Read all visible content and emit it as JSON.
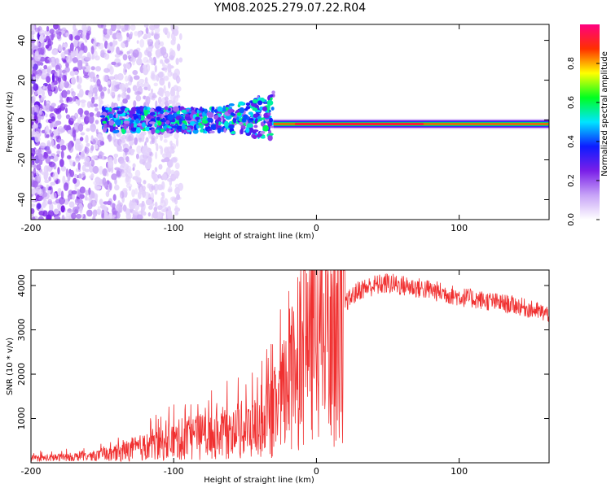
{
  "title": "YM08.2025.279.07.22.R04",
  "chart_data": [
    {
      "type": "heatmap",
      "xlabel": "Height of straight line (km)",
      "ylabel": "Frequency (Hz)",
      "xlim": [
        -200,
        163
      ],
      "ylim": [
        -50,
        48
      ],
      "xticks": [
        -200,
        -100,
        0,
        100
      ],
      "yticks": [
        -40,
        -20,
        0,
        20,
        40
      ],
      "colorbar": {
        "label": "Normalized spectral amplitude",
        "range": [
          0,
          1
        ],
        "ticks": [
          0.0,
          0.2,
          0.4,
          0.6,
          0.8
        ],
        "colors": [
          "#ffffff",
          "#c7a3f7",
          "#7a1fe8",
          "#0d1cff",
          "#00e5ff",
          "#00ff20",
          "#ffff00",
          "#ff3000",
          "#ff0080"
        ]
      },
      "features": {
        "noise_region_x": [
          -200,
          -115
        ],
        "scatter_band_x": [
          -150,
          -30
        ],
        "tone_x": [
          -30,
          163
        ],
        "tone_freq": -2,
        "tone_peak_x": [
          -15,
          75
        ]
      }
    },
    {
      "type": "line",
      "xlabel": "Height of straight line (km)",
      "ylabel": "SNR (10 * v/v)",
      "xlim": [
        -200,
        163
      ],
      "ylim": [
        0,
        4350
      ],
      "xticks": [
        -200,
        -100,
        0,
        100
      ],
      "yticks": [
        1000,
        2000,
        3000,
        4000
      ],
      "series": [
        {
          "name": "SNR",
          "color": "#f03030",
          "x": [
            -200,
            -180,
            -160,
            -140,
            -130,
            -120,
            -100,
            -80,
            -60,
            -40,
            -30,
            -20,
            -15,
            -10,
            0,
            10,
            20,
            30,
            40,
            50,
            60,
            80,
            100,
            120,
            140,
            163
          ],
          "values": [
            100,
            120,
            150,
            200,
            300,
            350,
            500,
            600,
            700,
            800,
            1100,
            1700,
            2500,
            2800,
            3000,
            3200,
            3600,
            3900,
            4000,
            4050,
            4000,
            3900,
            3750,
            3650,
            3550,
            3350
          ]
        }
      ]
    }
  ]
}
